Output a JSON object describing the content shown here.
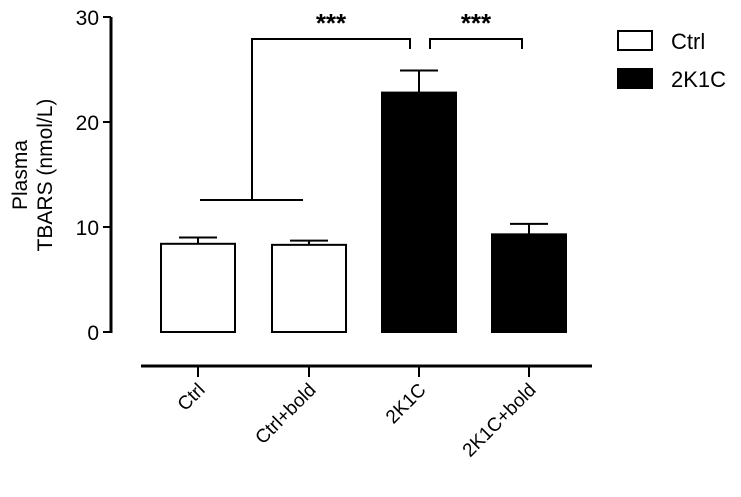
{
  "chart_data": {
    "type": "bar",
    "title": "",
    "xlabel": "",
    "ylabel": "Plasma TBARS (nmol/L)",
    "ylabel_lines": [
      "Plasma",
      "TBARS (nmol/L)"
    ],
    "ylim": [
      0,
      30
    ],
    "yticks": [
      "0",
      "10",
      "20",
      "30"
    ],
    "categories": [
      "Ctrl",
      "Ctrl+bold",
      "2K1C",
      "2K1C+bold"
    ],
    "values": [
      8.4,
      8.3,
      22.8,
      9.3
    ],
    "errors": [
      0.6,
      0.4,
      2.1,
      1.0
    ],
    "bar_colors": [
      "#ffffff",
      "#ffffff",
      "#000000",
      "#000000"
    ],
    "legend": [
      {
        "label": "Ctrl",
        "color": "#ffffff"
      },
      {
        "label": "2K1C",
        "color": "#000000"
      }
    ],
    "legend_position": "top-right",
    "grid": false,
    "annotations": [
      {
        "text": "***",
        "from": "Ctrl & Ctrl+bold",
        "to": "2K1C"
      },
      {
        "text": "***",
        "from": "2K1C",
        "to": "2K1C+bold"
      }
    ]
  }
}
